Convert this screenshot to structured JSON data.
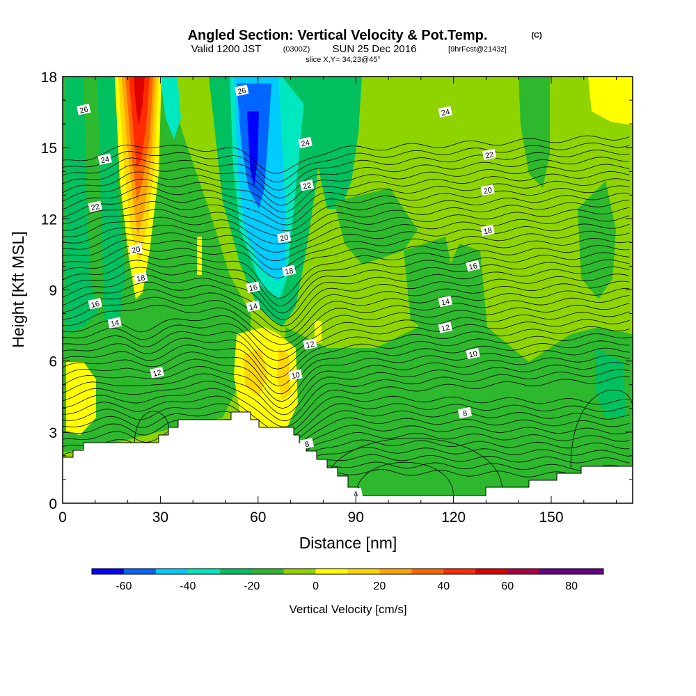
{
  "title": {
    "main": "Angled Section: Vertical Velocity & Pot.Temp.",
    "main_suffix": "(C)",
    "sub_valid": "Valid 1200 JST",
    "sub_utc": "(0300Z)",
    "sub_date": "SUN 25 Dec 2016",
    "sub_fcst": "[9hrFcst@2143z]",
    "slice": "slice X,Y= 34,23@45°"
  },
  "chart_data": {
    "type": "heatmap",
    "xlabel": "Distance [nm]",
    "ylabel": "Height [Kft MSL]",
    "xlim": [
      0,
      175
    ],
    "ylim": [
      0,
      18
    ],
    "x_ticks": [
      0,
      30,
      60,
      90,
      120,
      150
    ],
    "y_ticks": [
      0,
      3,
      6,
      9,
      12,
      15,
      18
    ],
    "colorbar": {
      "title": "Vertical Velocity [cm/s]",
      "range": [
        -70,
        90
      ],
      "step": 10,
      "tick_values": [
        -60,
        -40,
        -20,
        0,
        20,
        40,
        60,
        80
      ],
      "colors": [
        "#0000ff",
        "#0066ff",
        "#00ccff",
        "#00e8c0",
        "#00c060",
        "#2db82d",
        "#8fd400",
        "#ffff00",
        "#ffd700",
        "#ffa500",
        "#ff6600",
        "#ff2a00",
        "#dd0000",
        "#aa0044",
        "#660088",
        "#660088"
      ]
    },
    "theta_contours": {
      "levels": [
        4,
        6,
        8,
        10,
        12,
        14,
        16,
        18,
        20,
        22,
        24,
        26
      ],
      "labels": [
        {
          "text": "26",
          "x": 6.5,
          "y": 16.6
        },
        {
          "text": "24",
          "x": 13,
          "y": 14.5
        },
        {
          "text": "22",
          "x": 10,
          "y": 12.5
        },
        {
          "text": "20",
          "x": 22.5,
          "y": 10.7
        },
        {
          "text": "18",
          "x": 24,
          "y": 9.5
        },
        {
          "text": "16",
          "x": 10,
          "y": 8.4
        },
        {
          "text": "14",
          "x": 16,
          "y": 7.6
        },
        {
          "text": "12",
          "x": 29,
          "y": 5.5
        },
        {
          "text": "26",
          "x": 55,
          "y": 17.4
        },
        {
          "text": "24",
          "x": 74.5,
          "y": 15.2
        },
        {
          "text": "22",
          "x": 75,
          "y": 13.4
        },
        {
          "text": "20",
          "x": 68,
          "y": 11.2
        },
        {
          "text": "18",
          "x": 69.5,
          "y": 9.8
        },
        {
          "text": "16",
          "x": 58.5,
          "y": 9.1
        },
        {
          "text": "14",
          "x": 58.5,
          "y": 8.3
        },
        {
          "text": "12",
          "x": 76,
          "y": 6.7
        },
        {
          "text": "10",
          "x": 71.5,
          "y": 5.4
        },
        {
          "text": "8",
          "x": 75,
          "y": 2.5
        },
        {
          "text": "4",
          "x": 90,
          "y": 0.4
        },
        {
          "text": "24",
          "x": 117.5,
          "y": 16.5
        },
        {
          "text": "22",
          "x": 131,
          "y": 14.7
        },
        {
          "text": "20",
          "x": 130.5,
          "y": 13.2
        },
        {
          "text": "18",
          "x": 130.5,
          "y": 11.5
        },
        {
          "text": "16",
          "x": 126,
          "y": 10.0
        },
        {
          "text": "14",
          "x": 117.5,
          "y": 8.5
        },
        {
          "text": "12",
          "x": 117.5,
          "y": 7.4
        },
        {
          "text": "10",
          "x": 126,
          "y": 6.3
        },
        {
          "text": "8",
          "x": 123.5,
          "y": 3.8
        }
      ]
    }
  }
}
